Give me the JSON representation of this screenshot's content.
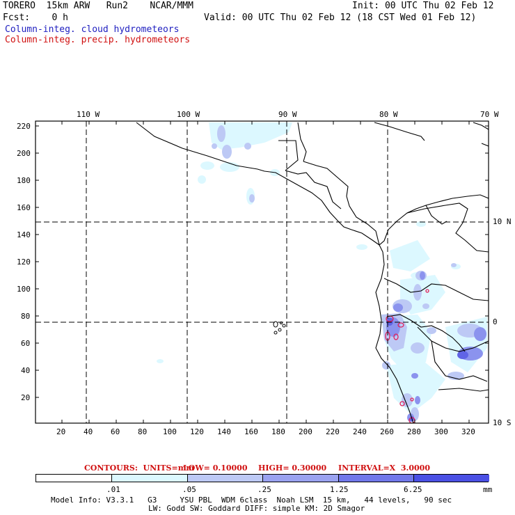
{
  "header": {
    "line1_left": "TORERO  15km ARW   Run2    NCAR/MMM",
    "line1_right": "Init: 00 UTC Thu 02 Feb 12",
    "line2_left": "Fcst:    0 h",
    "line2_right": "Valid: 00 UTC Thu 02 Feb 12 (18 CST Wed 01 Feb 12)",
    "field1": "Column-integ. cloud hydrometeors",
    "field2": "Column-integ. precip. hydrometeors"
  },
  "map": {
    "top_lon_labels": [
      "110 W",
      "100 W",
      "90 W",
      "80 W",
      "70 W"
    ],
    "right_lat_labels": [
      "10 N",
      "0",
      "10 S"
    ],
    "left_y_labels": [
      "220",
      "200",
      "180",
      "160",
      "140",
      "120",
      "100",
      "80",
      "60",
      "40",
      "20"
    ],
    "bottom_x_labels": [
      "20",
      "40",
      "60",
      "80",
      "100",
      "120",
      "140",
      "160",
      "180",
      "200",
      "220",
      "240",
      "260",
      "280",
      "300",
      "320"
    ],
    "grid_line_style": "dashed",
    "colors": {
      "coast": "#000000",
      "cloud_lightest": "#dcf8ff",
      "cloud_light": "#bdc9f5",
      "cloud_mid": "#8b93ee",
      "cloud_dark": "#6064e6",
      "precip_contour": "#e0205a"
    }
  },
  "contour_info": {
    "contours": "CONTOURS:  UNITS=mm",
    "low": "LOW= 0.10000",
    "high": "HIGH= 0.30000",
    "interval": "INTERVAL=X  3.0000"
  },
  "colorbar": {
    "labels": [
      ".01",
      ".05",
      ".25",
      "1.25",
      "6.25"
    ],
    "units": "mm",
    "colors": [
      "#ffffff",
      "#dcf8ff",
      "#bdc9f5",
      "#9aa2f0",
      "#7178ea",
      "#4a50e4",
      "#1d1fe0"
    ]
  },
  "footer": {
    "line1": "Model Info: V3.3.1   G3     YSU PBL  WDM 6class  Noah LSM  15 km,   44 levels,   90 sec",
    "line2": "LW: Godd SW: Goddard DIFF: simple KM: 2D Smagor"
  }
}
